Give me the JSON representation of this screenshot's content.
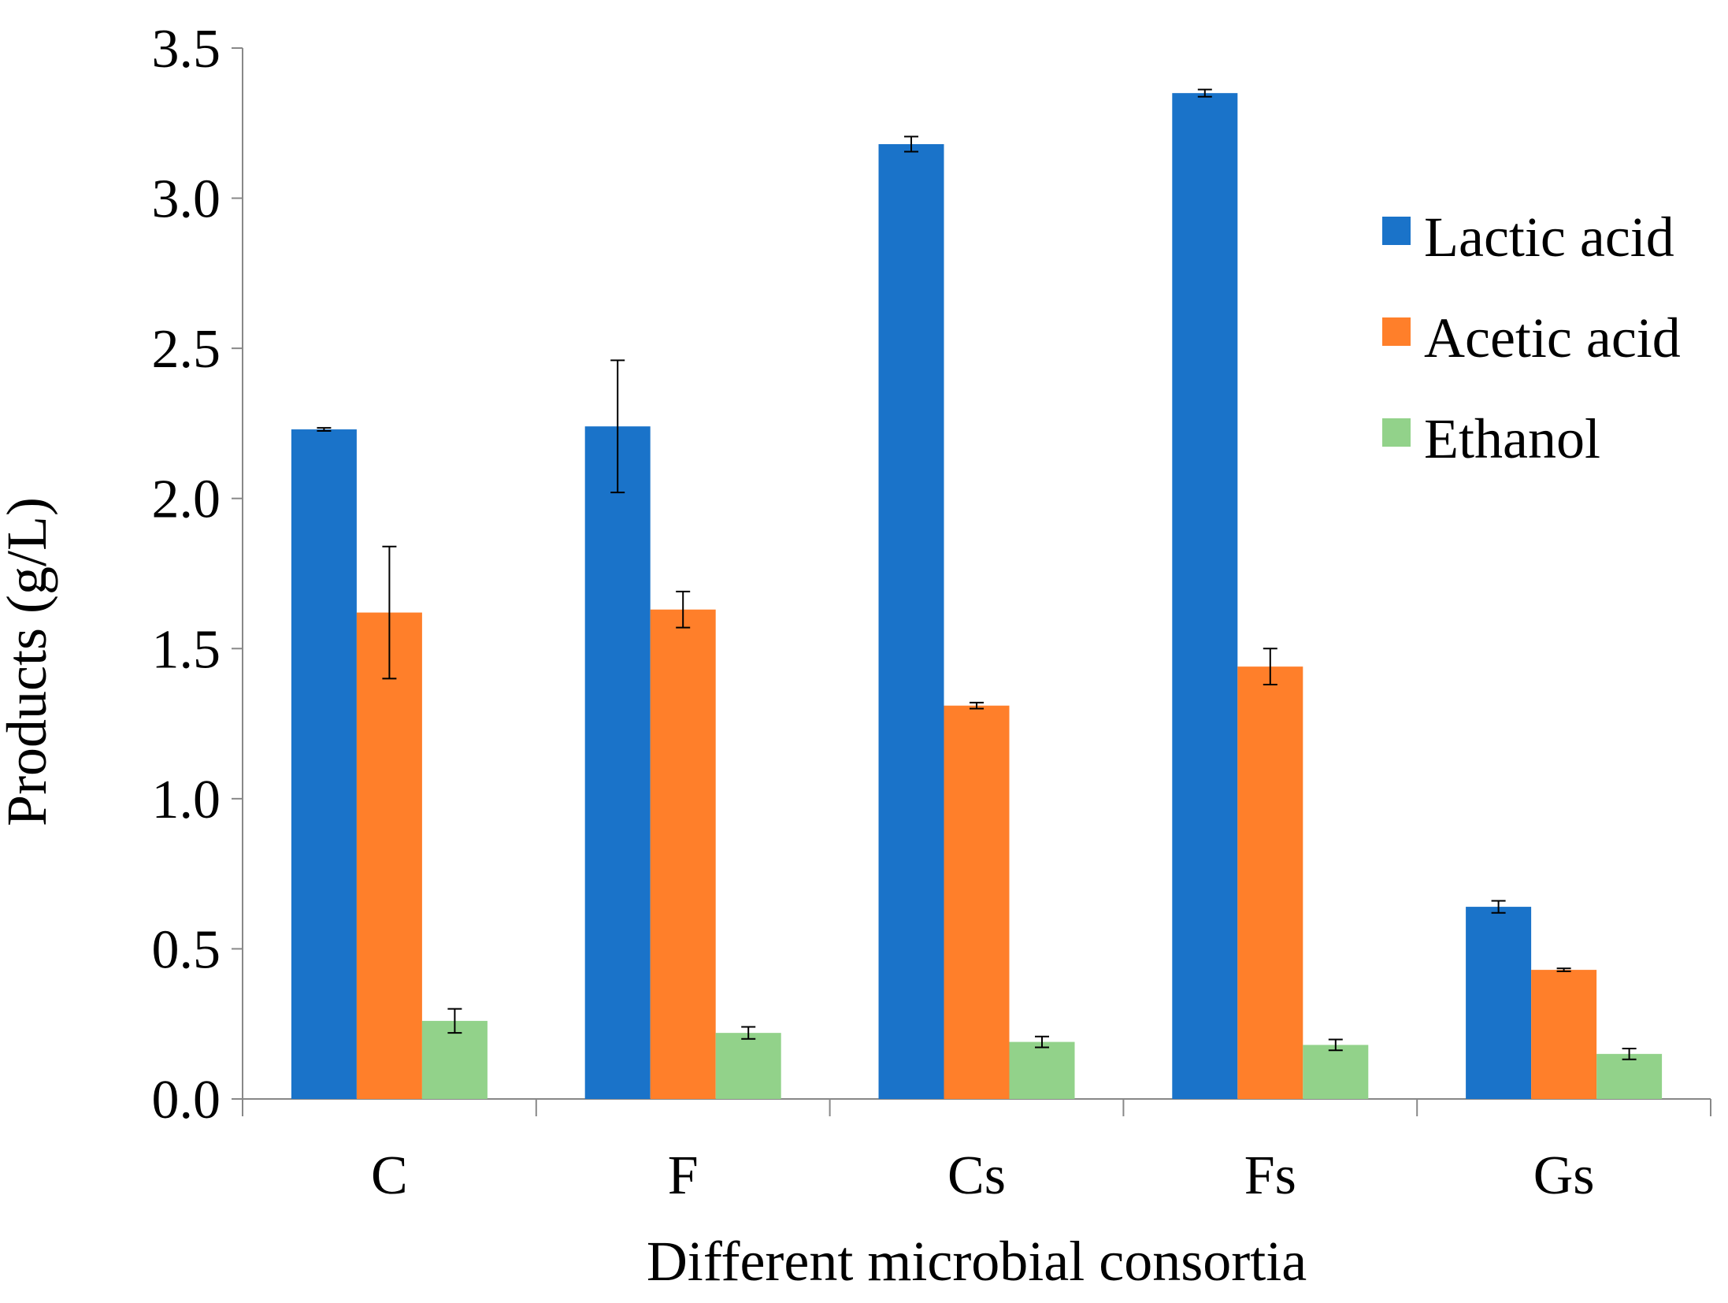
{
  "chart_data": {
    "type": "bar",
    "title": "",
    "xlabel": "Different microbial consortia",
    "ylabel": "Products (g/L)",
    "categories": [
      "C",
      "F",
      "Cs",
      "Fs",
      "Gs"
    ],
    "ylim": [
      0,
      3.5
    ],
    "yticks": [
      "0.0",
      "0.5",
      "1.0",
      "1.5",
      "2.0",
      "2.5",
      "3.0",
      "3.5"
    ],
    "grid": false,
    "legend_position": "right",
    "series": [
      {
        "name": "Lactic acid",
        "color": "#1a73c9",
        "values": [
          2.23,
          2.24,
          3.18,
          3.35,
          0.64
        ],
        "errors": [
          0.005,
          0.22,
          0.025,
          0.012,
          0.02
        ]
      },
      {
        "name": "Acetic acid",
        "color": "#ff7f2a",
        "values": [
          1.62,
          1.63,
          1.31,
          1.44,
          0.43
        ],
        "errors": [
          0.22,
          0.06,
          0.01,
          0.06,
          0.005
        ]
      },
      {
        "name": "Ethanol",
        "color": "#92d28a",
        "values": [
          0.26,
          0.22,
          0.19,
          0.18,
          0.15
        ],
        "errors": [
          0.04,
          0.02,
          0.018,
          0.018,
          0.018
        ]
      }
    ]
  }
}
